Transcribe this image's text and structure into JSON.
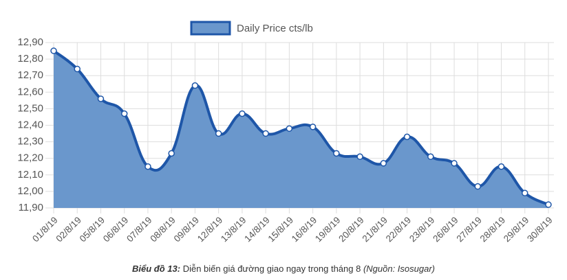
{
  "chart_data": {
    "type": "area",
    "legend": "Daily Price cts/lb",
    "caption": {
      "label": "Biểu đồ 13:",
      "text": " Diễn biến giá đường giao ngay trong tháng 8 ",
      "source": "(Nguồn: Isosugar)"
    },
    "categories": [
      "01/8/19",
      "02/8/19",
      "05/8/19",
      "06/8/19",
      "07/8/19",
      "08/8/19",
      "09/8/19",
      "12/8/19",
      "13/8/19",
      "14/8/19",
      "15/8/19",
      "16/8/19",
      "19/8/19",
      "20/8/19",
      "21/8/19",
      "22/8/19",
      "23/8/19",
      "26/8/19",
      "27/8/19",
      "28/8/19",
      "29/8/19",
      "30/8/19"
    ],
    "values": [
      12.85,
      12.74,
      12.56,
      12.47,
      12.15,
      12.23,
      12.64,
      12.35,
      12.47,
      12.35,
      12.38,
      12.39,
      12.23,
      12.21,
      12.17,
      12.33,
      12.21,
      12.17,
      12.03,
      12.15,
      11.99,
      11.92
    ],
    "color": "#6a97cc",
    "line_color": "#1e56a8",
    "ylim": [
      11.9,
      12.9
    ],
    "yticks": [
      {
        "value": 11.9,
        "label": "11,90"
      },
      {
        "value": 12.0,
        "label": "12,00"
      },
      {
        "value": 12.1,
        "label": "12,10"
      },
      {
        "value": 12.2,
        "label": "12,20"
      },
      {
        "value": 12.3,
        "label": "12,30"
      },
      {
        "value": 12.4,
        "label": "12,40"
      },
      {
        "value": 12.5,
        "label": "12,50"
      },
      {
        "value": 12.6,
        "label": "12,60"
      },
      {
        "value": 12.7,
        "label": "12,70"
      },
      {
        "value": 12.8,
        "label": "12,80"
      },
      {
        "value": 12.9,
        "label": "12,90"
      }
    ],
    "grid": true
  }
}
